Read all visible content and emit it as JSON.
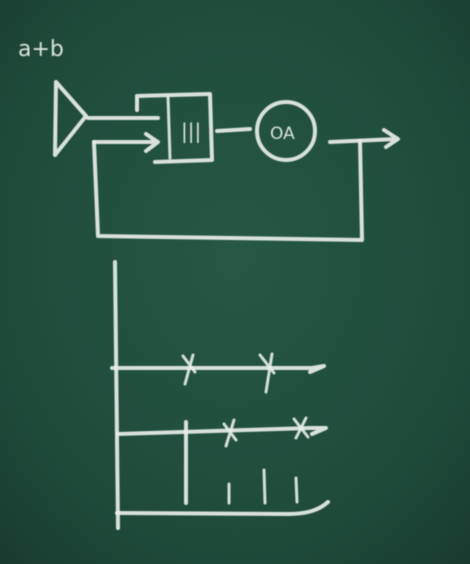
{
  "board": {
    "background": "#1f4a3a",
    "chalk_color": "#e9eee9"
  },
  "labels": {
    "top_left": "a+b",
    "block_label": "|||",
    "circle_label": "OA"
  }
}
